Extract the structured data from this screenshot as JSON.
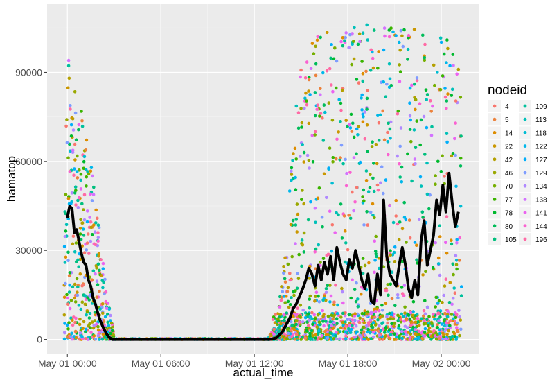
{
  "chart_data": {
    "type": "scatter",
    "xlabel": "actual_time",
    "ylabel": "hamatop",
    "x_range_hours": [
      -1.3,
      26.4
    ],
    "ylim": [
      -5000,
      113000
    ],
    "x_ticks": [
      {
        "hour": 0,
        "label": "May 01 00:00"
      },
      {
        "hour": 6,
        "label": "May 01 06:00"
      },
      {
        "hour": 12,
        "label": "May 01 12:00"
      },
      {
        "hour": 18,
        "label": "May 01 18:00"
      },
      {
        "hour": 24,
        "label": "May 02 00:00"
      }
    ],
    "y_ticks": [
      {
        "value": 0,
        "label": "0"
      },
      {
        "value": 30000,
        "label": "30000"
      },
      {
        "value": 60000,
        "label": "60000"
      },
      {
        "value": 90000,
        "label": "90000"
      }
    ],
    "grid": true,
    "background": "#ebebeb",
    "legend": {
      "title": "nodeid",
      "placement": "right",
      "entries": [
        {
          "label": "4",
          "color": "#F8766D"
        },
        {
          "label": "5",
          "color": "#EC823C"
        },
        {
          "label": "14",
          "color": "#DD8D00"
        },
        {
          "label": "22",
          "color": "#CA9700"
        },
        {
          "label": "42",
          "color": "#B4A000"
        },
        {
          "label": "46",
          "color": "#9AA800"
        },
        {
          "label": "70",
          "color": "#75AF00"
        },
        {
          "label": "77",
          "color": "#3BB400"
        },
        {
          "label": "78",
          "color": "#00B92E"
        },
        {
          "label": "80",
          "color": "#00BC59"
        },
        {
          "label": "105",
          "color": "#00BF7D"
        },
        {
          "label": "109",
          "color": "#00C09C"
        },
        {
          "label": "113",
          "color": "#00C0B9"
        },
        {
          "label": "118",
          "color": "#00BDD3"
        },
        {
          "label": "122",
          "color": "#00B7EA"
        },
        {
          "label": "127",
          "color": "#00AEFA"
        },
        {
          "label": "129",
          "color": "#7F9DFF"
        },
        {
          "label": "134",
          "color": "#B089FF"
        },
        {
          "label": "138",
          "color": "#D373FF"
        },
        {
          "label": "141",
          "color": "#EB63F0"
        },
        {
          "label": "144",
          "color": "#FA62D1"
        },
        {
          "label": "196",
          "color": "#FF6AA5"
        }
      ]
    },
    "mean_line": {
      "color": "#000000",
      "points": [
        [
          0,
          41000
        ],
        [
          0.15,
          45000
        ],
        [
          0.3,
          44000
        ],
        [
          0.45,
          36000
        ],
        [
          0.6,
          37000
        ],
        [
          0.75,
          33000
        ],
        [
          0.9,
          29000
        ],
        [
          1.05,
          26000
        ],
        [
          1.2,
          25000
        ],
        [
          1.35,
          20000
        ],
        [
          1.5,
          18000
        ],
        [
          1.65,
          14000
        ],
        [
          1.8,
          12000
        ],
        [
          1.95,
          9000
        ],
        [
          2.1,
          6500
        ],
        [
          2.3,
          4000
        ],
        [
          2.5,
          2000
        ],
        [
          2.7,
          600
        ],
        [
          2.9,
          0
        ],
        [
          13.0,
          0
        ],
        [
          13.4,
          500
        ],
        [
          13.8,
          2500
        ],
        [
          14.1,
          5500
        ],
        [
          14.3,
          7500
        ],
        [
          14.5,
          10500
        ],
        [
          14.7,
          12000
        ],
        [
          14.9,
          14500
        ],
        [
          15.1,
          17000
        ],
        [
          15.3,
          20000
        ],
        [
          15.5,
          24000
        ],
        [
          15.7,
          22000
        ],
        [
          15.9,
          18000
        ],
        [
          16.1,
          25000
        ],
        [
          16.3,
          20000
        ],
        [
          16.5,
          26000
        ],
        [
          16.7,
          22000
        ],
        [
          16.9,
          28000
        ],
        [
          17.1,
          20000
        ],
        [
          17.3,
          31000
        ],
        [
          17.5,
          26000
        ],
        [
          17.7,
          22000
        ],
        [
          17.9,
          20000
        ],
        [
          18.1,
          27000
        ],
        [
          18.3,
          24000
        ],
        [
          18.5,
          30000
        ],
        [
          18.7,
          25000
        ],
        [
          18.9,
          20000
        ],
        [
          19.1,
          17000
        ],
        [
          19.3,
          22000
        ],
        [
          19.5,
          13000
        ],
        [
          19.7,
          12000
        ],
        [
          19.9,
          22000
        ],
        [
          20.1,
          15000
        ],
        [
          20.3,
          47000
        ],
        [
          20.5,
          28000
        ],
        [
          20.7,
          22000
        ],
        [
          20.9,
          20000
        ],
        [
          21.1,
          18000
        ],
        [
          21.3,
          25000
        ],
        [
          21.5,
          31000
        ],
        [
          21.7,
          25000
        ],
        [
          21.9,
          17000
        ],
        [
          22.1,
          14000
        ],
        [
          22.3,
          20000
        ],
        [
          22.5,
          15000
        ],
        [
          22.7,
          33000
        ],
        [
          22.9,
          40000
        ],
        [
          23.1,
          25000
        ],
        [
          23.3,
          30000
        ],
        [
          23.5,
          35000
        ],
        [
          23.7,
          47000
        ],
        [
          23.9,
          42000
        ],
        [
          24.1,
          52000
        ],
        [
          24.3,
          43000
        ],
        [
          24.5,
          56000
        ],
        [
          24.7,
          46000
        ],
        [
          24.9,
          38000
        ],
        [
          25.1,
          43000
        ]
      ]
    },
    "point_envelope": [
      [
        -0.3,
        2000
      ],
      [
        0,
        97000
      ],
      [
        0.5,
        88000
      ],
      [
        1.0,
        75000
      ],
      [
        1.5,
        60000
      ],
      [
        2.0,
        40000
      ],
      [
        2.5,
        18000
      ],
      [
        3.0,
        1500
      ],
      [
        3.4,
        0
      ],
      [
        12.8,
        0
      ],
      [
        13.4,
        5000
      ],
      [
        13.8,
        20000
      ],
      [
        14.2,
        45000
      ],
      [
        14.6,
        75000
      ],
      [
        15.0,
        95000
      ],
      [
        15.5,
        102000
      ],
      [
        16.0,
        103000
      ],
      [
        17.0,
        104000
      ],
      [
        18.0,
        105000
      ],
      [
        19.0,
        106000
      ],
      [
        20.0,
        107000
      ],
      [
        21.0,
        106000
      ],
      [
        22.0,
        105000
      ],
      [
        23.0,
        105000
      ],
      [
        24.0,
        104000
      ],
      [
        24.5,
        101000
      ],
      [
        25.0,
        95000
      ],
      [
        25.3,
        93000
      ]
    ]
  }
}
